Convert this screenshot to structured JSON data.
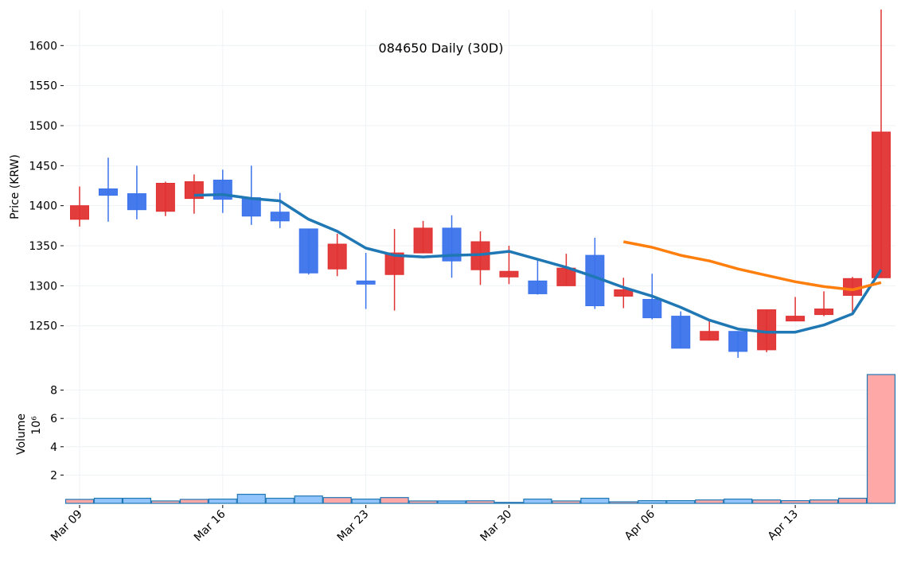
{
  "chart_data": {
    "type": "candlestick",
    "title": "084650 Daily (30D)",
    "price_panel": {
      "ylabel": "Price (KRW)",
      "ylim": [
        1205,
        1645
      ],
      "yticks": [
        1250,
        1300,
        1350,
        1400,
        1450,
        1500,
        1550,
        1600
      ],
      "grid": true
    },
    "volume_panel": {
      "ylabel": "Volume",
      "scale_label": "10⁶",
      "ylim": [
        0,
        10
      ],
      "yticks": [
        2,
        4,
        6,
        8
      ],
      "grid": true
    },
    "xticks": [
      {
        "index": 0,
        "label": "Mar 09"
      },
      {
        "index": 5,
        "label": "Mar 16"
      },
      {
        "index": 10,
        "label": "Mar 23"
      },
      {
        "index": 15,
        "label": "Mar 30"
      },
      {
        "index": 20,
        "label": "Apr 06"
      },
      {
        "index": 25,
        "label": "Apr 13"
      }
    ],
    "colors": {
      "up": "#e03131",
      "down": "#3b73ec",
      "up_volume": "#ffa8a8",
      "down_volume": "#93c5fd",
      "volume_edge": "#1f77b4",
      "ma_short": "#1f77b4",
      "ma_long": "#ff7f0e",
      "grid": "#eef2f6"
    },
    "dates": [
      "Mar 09",
      "Mar 10",
      "Mar 11",
      "Mar 12",
      "Mar 13",
      "Mar 16",
      "Mar 17",
      "Mar 18",
      "Mar 19",
      "Mar 20",
      "Mar 23",
      "Mar 24",
      "Mar 25",
      "Mar 26",
      "Mar 27",
      "Mar 30",
      "Mar 31",
      "Apr 01",
      "Apr 02",
      "Apr 03",
      "Apr 06",
      "Apr 07",
      "Apr 08",
      "Apr 09",
      "Apr 10",
      "Apr 13",
      "Apr 14",
      "Apr 15",
      "Apr 16"
    ],
    "ohlc": [
      [
        1383,
        1424,
        1374,
        1400
      ],
      [
        1421,
        1460,
        1380,
        1413
      ],
      [
        1415,
        1450,
        1383,
        1395
      ],
      [
        1393,
        1430,
        1387,
        1428
      ],
      [
        1409,
        1439,
        1390,
        1430
      ],
      [
        1432,
        1445,
        1391,
        1408
      ],
      [
        1410,
        1450,
        1376,
        1387
      ],
      [
        1392,
        1416,
        1372,
        1381
      ],
      [
        1371,
        1371,
        1314,
        1316
      ],
      [
        1321,
        1365,
        1312,
        1352
      ],
      [
        1306,
        1341,
        1271,
        1302
      ],
      [
        1314,
        1371,
        1269,
        1341
      ],
      [
        1341,
        1381,
        1341,
        1372
      ],
      [
        1372,
        1388,
        1310,
        1331
      ],
      [
        1320,
        1368,
        1301,
        1355
      ],
      [
        1311,
        1350,
        1302,
        1318
      ],
      [
        1306,
        1332,
        1289,
        1290
      ],
      [
        1300,
        1340,
        1300,
        1322
      ],
      [
        1338,
        1360,
        1271,
        1275
      ],
      [
        1287,
        1310,
        1272,
        1295
      ],
      [
        1283,
        1315,
        1258,
        1260
      ],
      [
        1262,
        1268,
        1222,
        1222
      ],
      [
        1232,
        1258,
        1232,
        1243
      ],
      [
        1243,
        1243,
        1210,
        1218
      ],
      [
        1220,
        1270,
        1217,
        1270
      ],
      [
        1256,
        1286,
        1256,
        1262
      ],
      [
        1264,
        1293,
        1262,
        1271
      ],
      [
        1288,
        1311,
        1267,
        1309
      ],
      [
        1310,
        1645,
        1310,
        1492
      ]
    ],
    "volume": [
      0.28,
      0.36,
      0.36,
      0.17,
      0.28,
      0.3,
      0.64,
      0.36,
      0.52,
      0.41,
      0.3,
      0.41,
      0.17,
      0.17,
      0.18,
      0.07,
      0.3,
      0.17,
      0.36,
      0.11,
      0.19,
      0.19,
      0.24,
      0.3,
      0.24,
      0.19,
      0.24,
      0.36,
      9.1
    ],
    "ma_short": {
      "start_index": 4,
      "values": [
        1413,
        1414,
        1409,
        1406,
        1383,
        1368,
        1347,
        1338,
        1336,
        1338,
        1339,
        1343,
        1333,
        1323,
        1311,
        1298,
        1287,
        1273,
        1257,
        1246,
        1242,
        1242,
        1251,
        1265,
        1320
      ]
    },
    "ma_long": {
      "start_index": 19,
      "values": [
        1355,
        1348,
        1338,
        1331,
        1321,
        1313,
        1305,
        1299,
        1295,
        1304
      ]
    }
  }
}
